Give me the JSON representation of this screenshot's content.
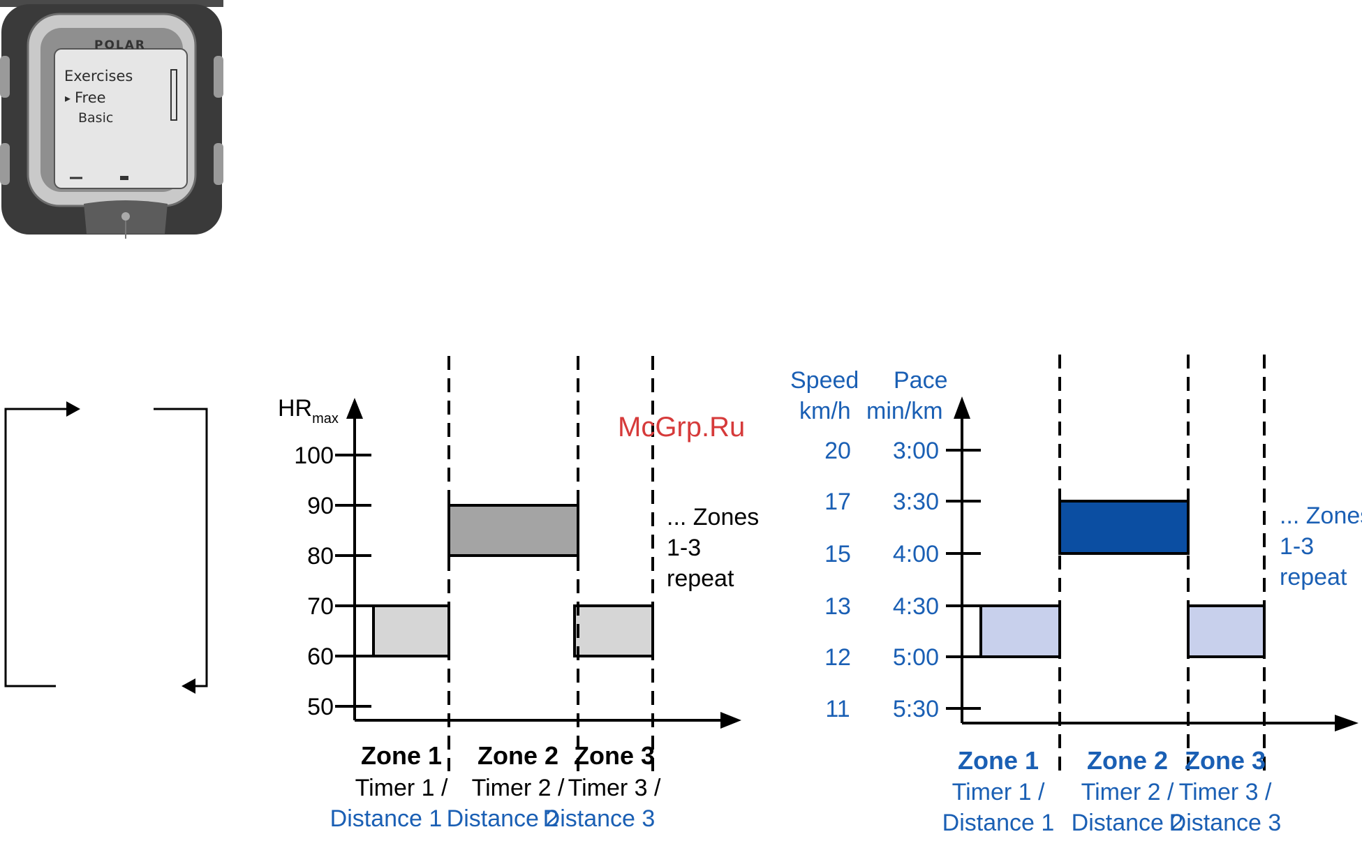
{
  "watch": {
    "brand": "POLAR",
    "menu_title": "Exercises",
    "menu_items": [
      "Free",
      "Basic"
    ],
    "selection_marker": "▸"
  },
  "watermark": "McGrp.Ru",
  "colors": {
    "text_blue": "#1a5fb4",
    "zone_grey": "#d6d6d6",
    "zone_dark_grey": "#a4a4a4",
    "zone_light_blue": "#c8d0ec",
    "zone_dark_blue": "#0b4ea2"
  },
  "chart_data": [
    {
      "type": "bar",
      "title": "",
      "ylabel_main": "HR",
      "ylabel_sub": "max",
      "yticks": [
        100,
        90,
        80,
        70,
        60,
        50
      ],
      "ylim": [
        50,
        100
      ],
      "categories": [
        "Zone 1",
        "Zone 2",
        "Zone 3"
      ],
      "category_sublabels": [
        {
          "timer": "Timer 1 /",
          "distance": "Distance 1"
        },
        {
          "timer": "Timer 2 /",
          "distance": "Distance 2"
        },
        {
          "timer": "Timer 3 /",
          "distance": "Distance 3"
        }
      ],
      "zones": [
        {
          "name": "Zone 1",
          "low": 60,
          "high": 70
        },
        {
          "name": "Zone 2",
          "low": 80,
          "high": 90
        },
        {
          "name": "Zone 3",
          "low": 60,
          "high": 70
        }
      ],
      "annotation": [
        "... Zones",
        "1-3",
        "repeat"
      ]
    },
    {
      "type": "bar",
      "title": "",
      "ylabel_speed": [
        "Speed",
        "km/h"
      ],
      "ylabel_pace": [
        "Pace",
        "min/km"
      ],
      "speed_ticks": [
        20,
        17,
        15,
        13,
        12,
        11
      ],
      "pace_ticks": [
        "3:00",
        "3:30",
        "4:00",
        "4:30",
        "5:00",
        "5:30"
      ],
      "categories": [
        "Zone 1",
        "Zone 2",
        "Zone 3"
      ],
      "category_sublabels": [
        {
          "timer": "Timer 1 /",
          "distance": "Distance 1"
        },
        {
          "timer": "Timer 2 /",
          "distance": "Distance 2"
        },
        {
          "timer": "Timer 3 /",
          "distance": "Distance 3"
        }
      ],
      "zones": [
        {
          "name": "Zone 1",
          "low_pace": "5:00",
          "high_pace": "4:30"
        },
        {
          "name": "Zone 2",
          "low_pace": "4:00",
          "high_pace": "3:30"
        },
        {
          "name": "Zone 3",
          "low_pace": "5:00",
          "high_pace": "4:30"
        }
      ],
      "annotation": [
        "... Zones",
        "1-3",
        "repeat"
      ]
    }
  ]
}
